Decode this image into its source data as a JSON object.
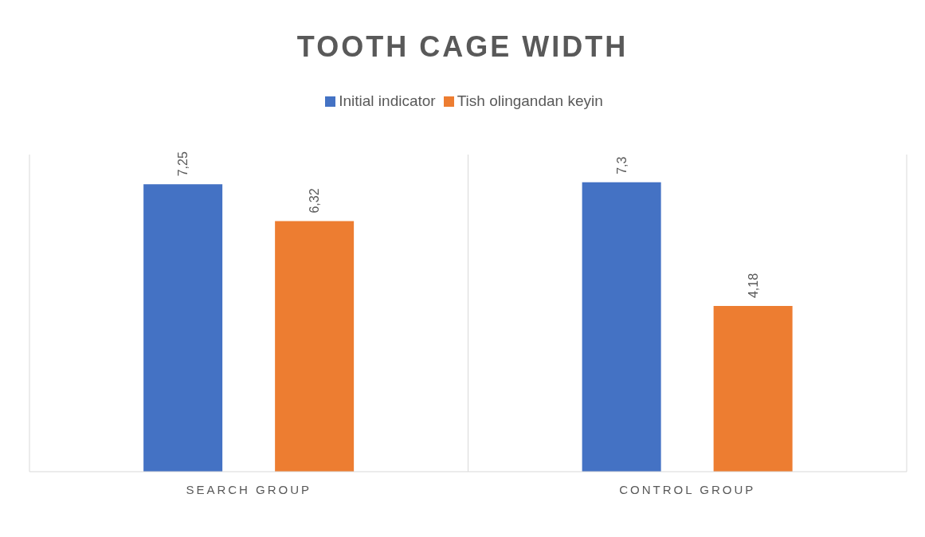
{
  "chart_data": {
    "type": "bar",
    "title": "TOOTH CAGE WIDTH",
    "categories": [
      "SEARCH GROUP",
      "CONTROL GROUP"
    ],
    "series": [
      {
        "name": "Initial indicator",
        "color": "#4472c4",
        "values": [
          7.25,
          7.3
        ],
        "value_labels": [
          "7,25",
          "7,3"
        ]
      },
      {
        "name": "Tish olingandan keyin",
        "color": "#ed7d31",
        "values": [
          6.32,
          4.18
        ],
        "value_labels": [
          "6,32",
          "4,18"
        ]
      }
    ],
    "grid": "x",
    "legend": "top"
  }
}
